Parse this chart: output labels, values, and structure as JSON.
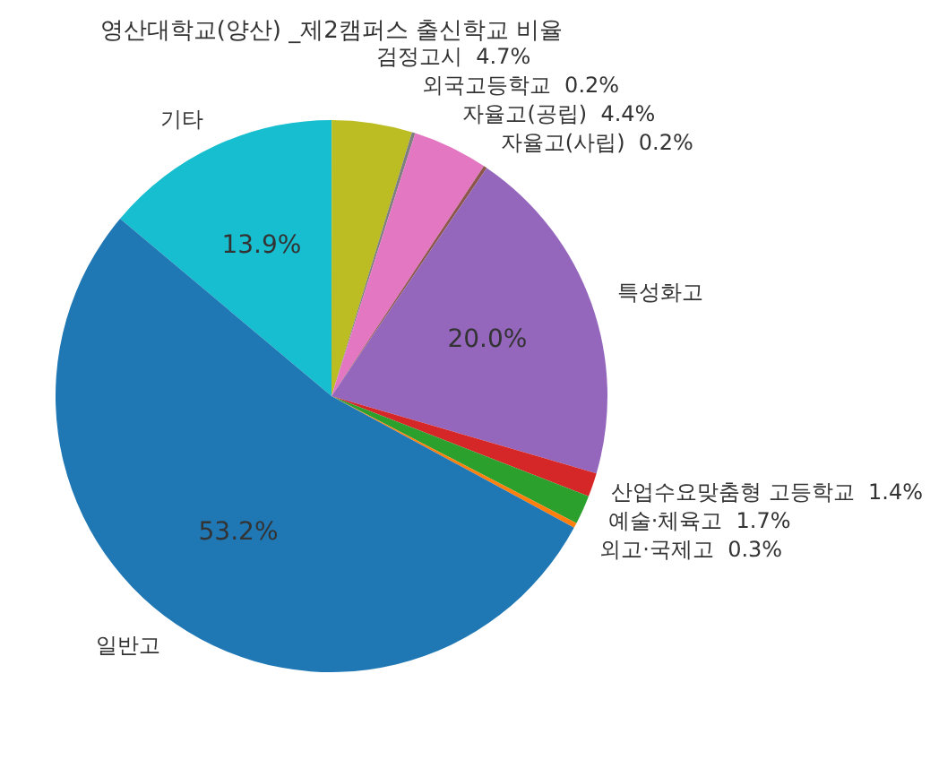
{
  "chart_data": {
    "type": "pie",
    "title": "영산대학교(양산) _제2캠퍼스 출신학교 비율",
    "categories": [
      "일반고",
      "외고·국제고",
      "예술·체육고",
      "산업수요맞춤형 고등학교",
      "특성화고",
      "자율고(사립)",
      "자율고(공립)",
      "외국고등학교",
      "검정고시",
      "기타"
    ],
    "values": [
      53.2,
      0.3,
      1.7,
      1.4,
      20.0,
      0.2,
      4.4,
      0.2,
      4.7,
      13.9
    ],
    "value_labels": [
      "53.2%",
      "0.3%",
      "1.7%",
      "1.4%",
      "20.0%",
      "0.2%",
      "4.4%",
      "0.2%",
      "4.7%",
      "13.9%"
    ],
    "colors": [
      "#1f77b4",
      "#ff7f0e",
      "#2ca02c",
      "#d62728",
      "#9467bd",
      "#8c564b",
      "#e377c2",
      "#7f7f7f",
      "#bcbd22",
      "#17becf"
    ],
    "legend": false
  }
}
